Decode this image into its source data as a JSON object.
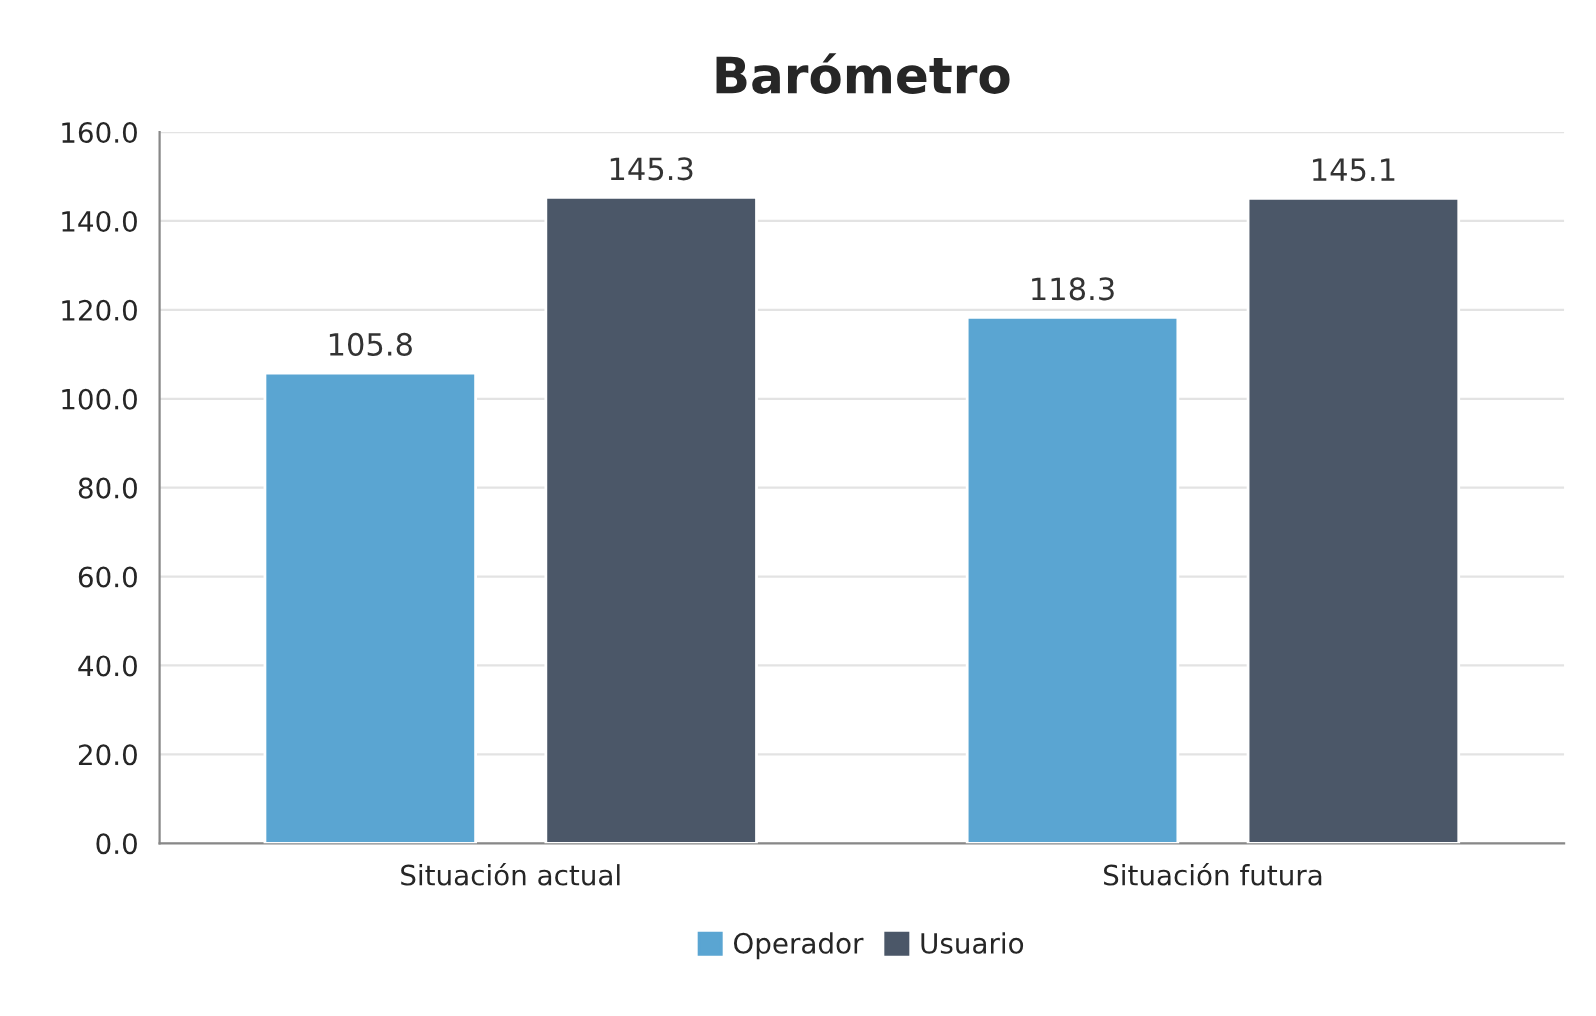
{
  "chart_data": {
    "type": "bar",
    "title": "Barómetro",
    "categories": [
      "Situación actual",
      "Situación futura"
    ],
    "series": [
      {
        "name": "Operador",
        "color": "#5aa5d2",
        "values": [
          105.8,
          118.3
        ]
      },
      {
        "name": "Usuario",
        "color": "#4b5768",
        "values": [
          145.3,
          145.1
        ]
      }
    ],
    "ylim": [
      0,
      160
    ],
    "yticks": [
      {
        "value": 0,
        "label": "0.0"
      },
      {
        "value": 20,
        "label": "20.0"
      },
      {
        "value": 40,
        "label": "40.0"
      },
      {
        "value": 60,
        "label": "60.0"
      },
      {
        "value": 80,
        "label": "80.0"
      },
      {
        "value": 100,
        "label": "100.0"
      },
      {
        "value": 120,
        "label": "120.0"
      },
      {
        "value": 140,
        "label": "140.0"
      },
      {
        "value": 160,
        "label": "160.0"
      }
    ],
    "grid": "y",
    "legend": "bottom",
    "data_labels": true
  }
}
